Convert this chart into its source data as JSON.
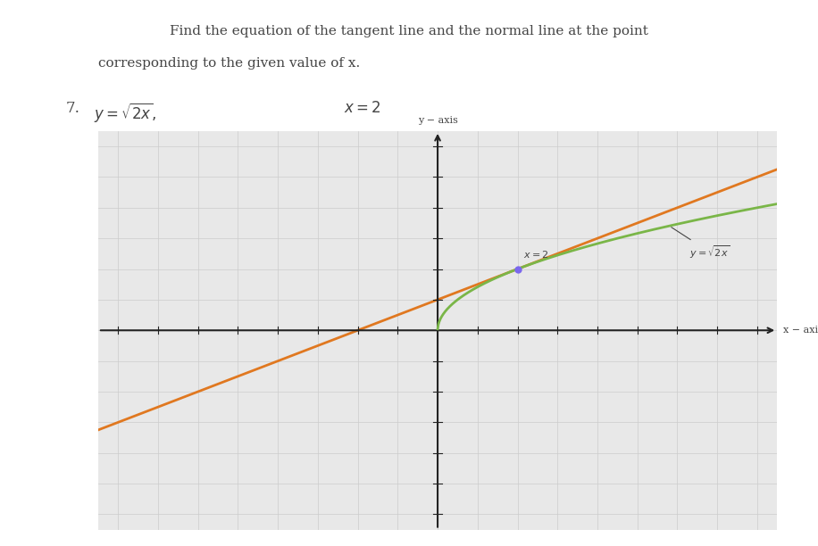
{
  "title_line1": "Find the equation of the tangent line and the normal line at the point",
  "title_line2": "corresponding to the given value of x.",
  "problem_label": "7.",
  "xlim": [
    -8.5,
    8.5
  ],
  "ylim": [
    -6.5,
    6.5
  ],
  "x_axis_label": "x − axis",
  "y_axis_label": "y − axis",
  "curve_color": "#7ab648",
  "tangent_color": "#e07820",
  "point_color": "#7b68ee",
  "point_x": 2,
  "grid_color": "#cccccc",
  "bg_color": "#e8e8e8",
  "axes_color": "#222222",
  "text_color": "#444444",
  "fig_bg": "#ffffff"
}
